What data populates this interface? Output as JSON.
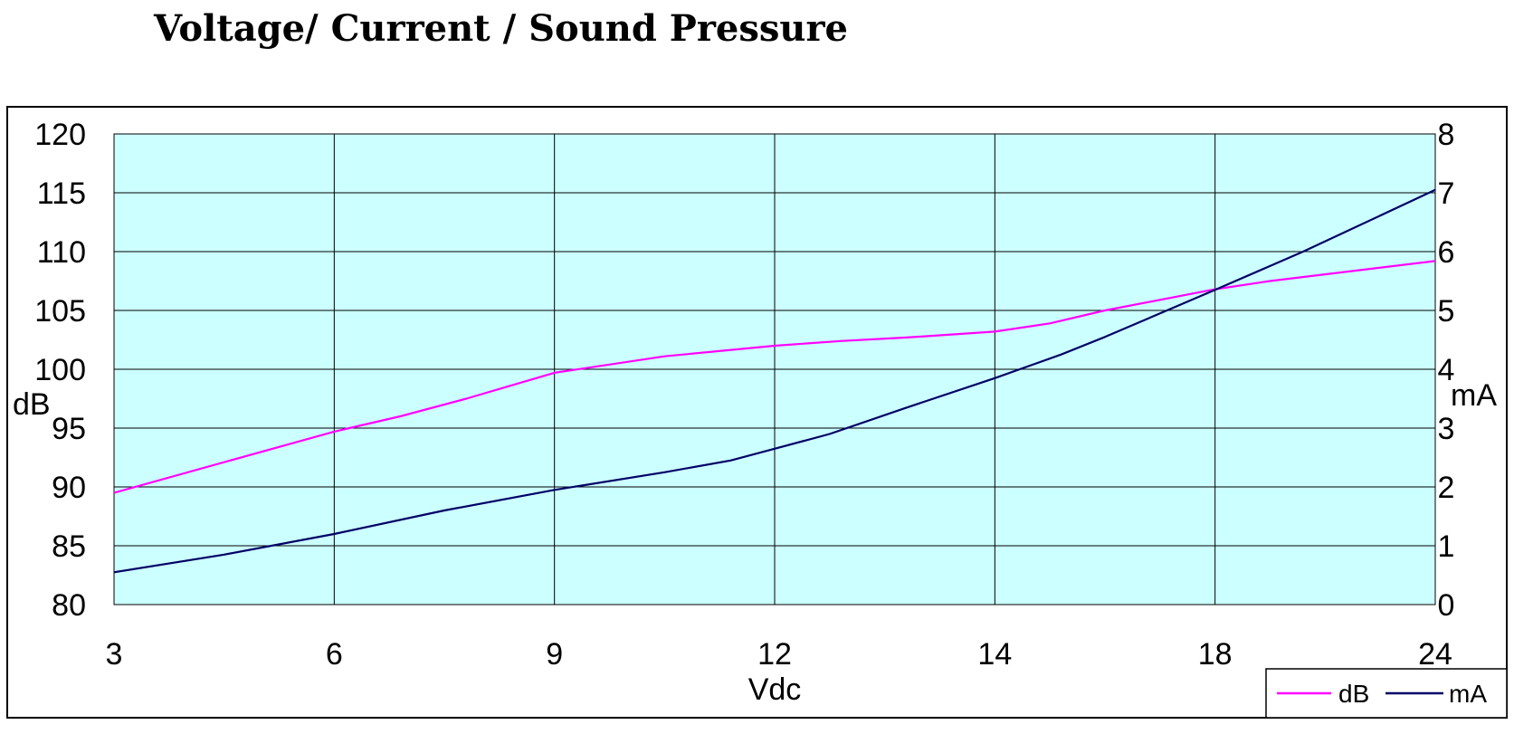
{
  "chart_data": {
    "type": "line",
    "title": "Voltage/ Current / Sound Pressure",
    "xlabel": "Vdc",
    "ylabel_left": "dB",
    "ylabel_right": "mA",
    "categories": [
      "3",
      "6",
      "9",
      "12",
      "14",
      "18",
      "24"
    ],
    "x_positions": [
      0,
      1,
      2,
      3,
      4,
      5,
      6
    ],
    "ylim_left": [
      80,
      120
    ],
    "ylim_right": [
      0,
      8
    ],
    "yticks_left": [
      80,
      85,
      90,
      95,
      100,
      105,
      110,
      115,
      120
    ],
    "yticks_right": [
      0,
      1,
      2,
      3,
      4,
      5,
      6,
      7,
      8
    ],
    "grid": true,
    "legend": "bottom-right",
    "background_color": "#ccffff",
    "series": [
      {
        "name": "dB",
        "axis": "left",
        "color": "#ff00ff",
        "x": [
          0,
          1,
          1.3,
          1.6,
          1.8,
          2,
          2.5,
          3,
          3.3,
          3.6,
          4,
          4.25,
          4.5,
          5,
          5.25,
          6
        ],
        "y": [
          89.5,
          94.7,
          96.0,
          97.5,
          98.6,
          99.7,
          101.1,
          102.0,
          102.4,
          102.7,
          103.2,
          103.9,
          105.0,
          106.8,
          107.5,
          109.2
        ]
      },
      {
        "name": "mA",
        "axis": "right",
        "color": "#000066",
        "x": [
          0,
          0.5,
          1,
          1.5,
          2,
          2.5,
          2.8,
          3,
          3.25,
          3.6,
          4,
          4.3,
          4.5,
          5,
          5.4,
          6
        ],
        "y": [
          0.55,
          0.85,
          1.2,
          1.6,
          1.95,
          2.25,
          2.45,
          2.65,
          2.9,
          3.35,
          3.85,
          4.25,
          4.55,
          5.35,
          6.0,
          7.05
        ]
      }
    ]
  }
}
